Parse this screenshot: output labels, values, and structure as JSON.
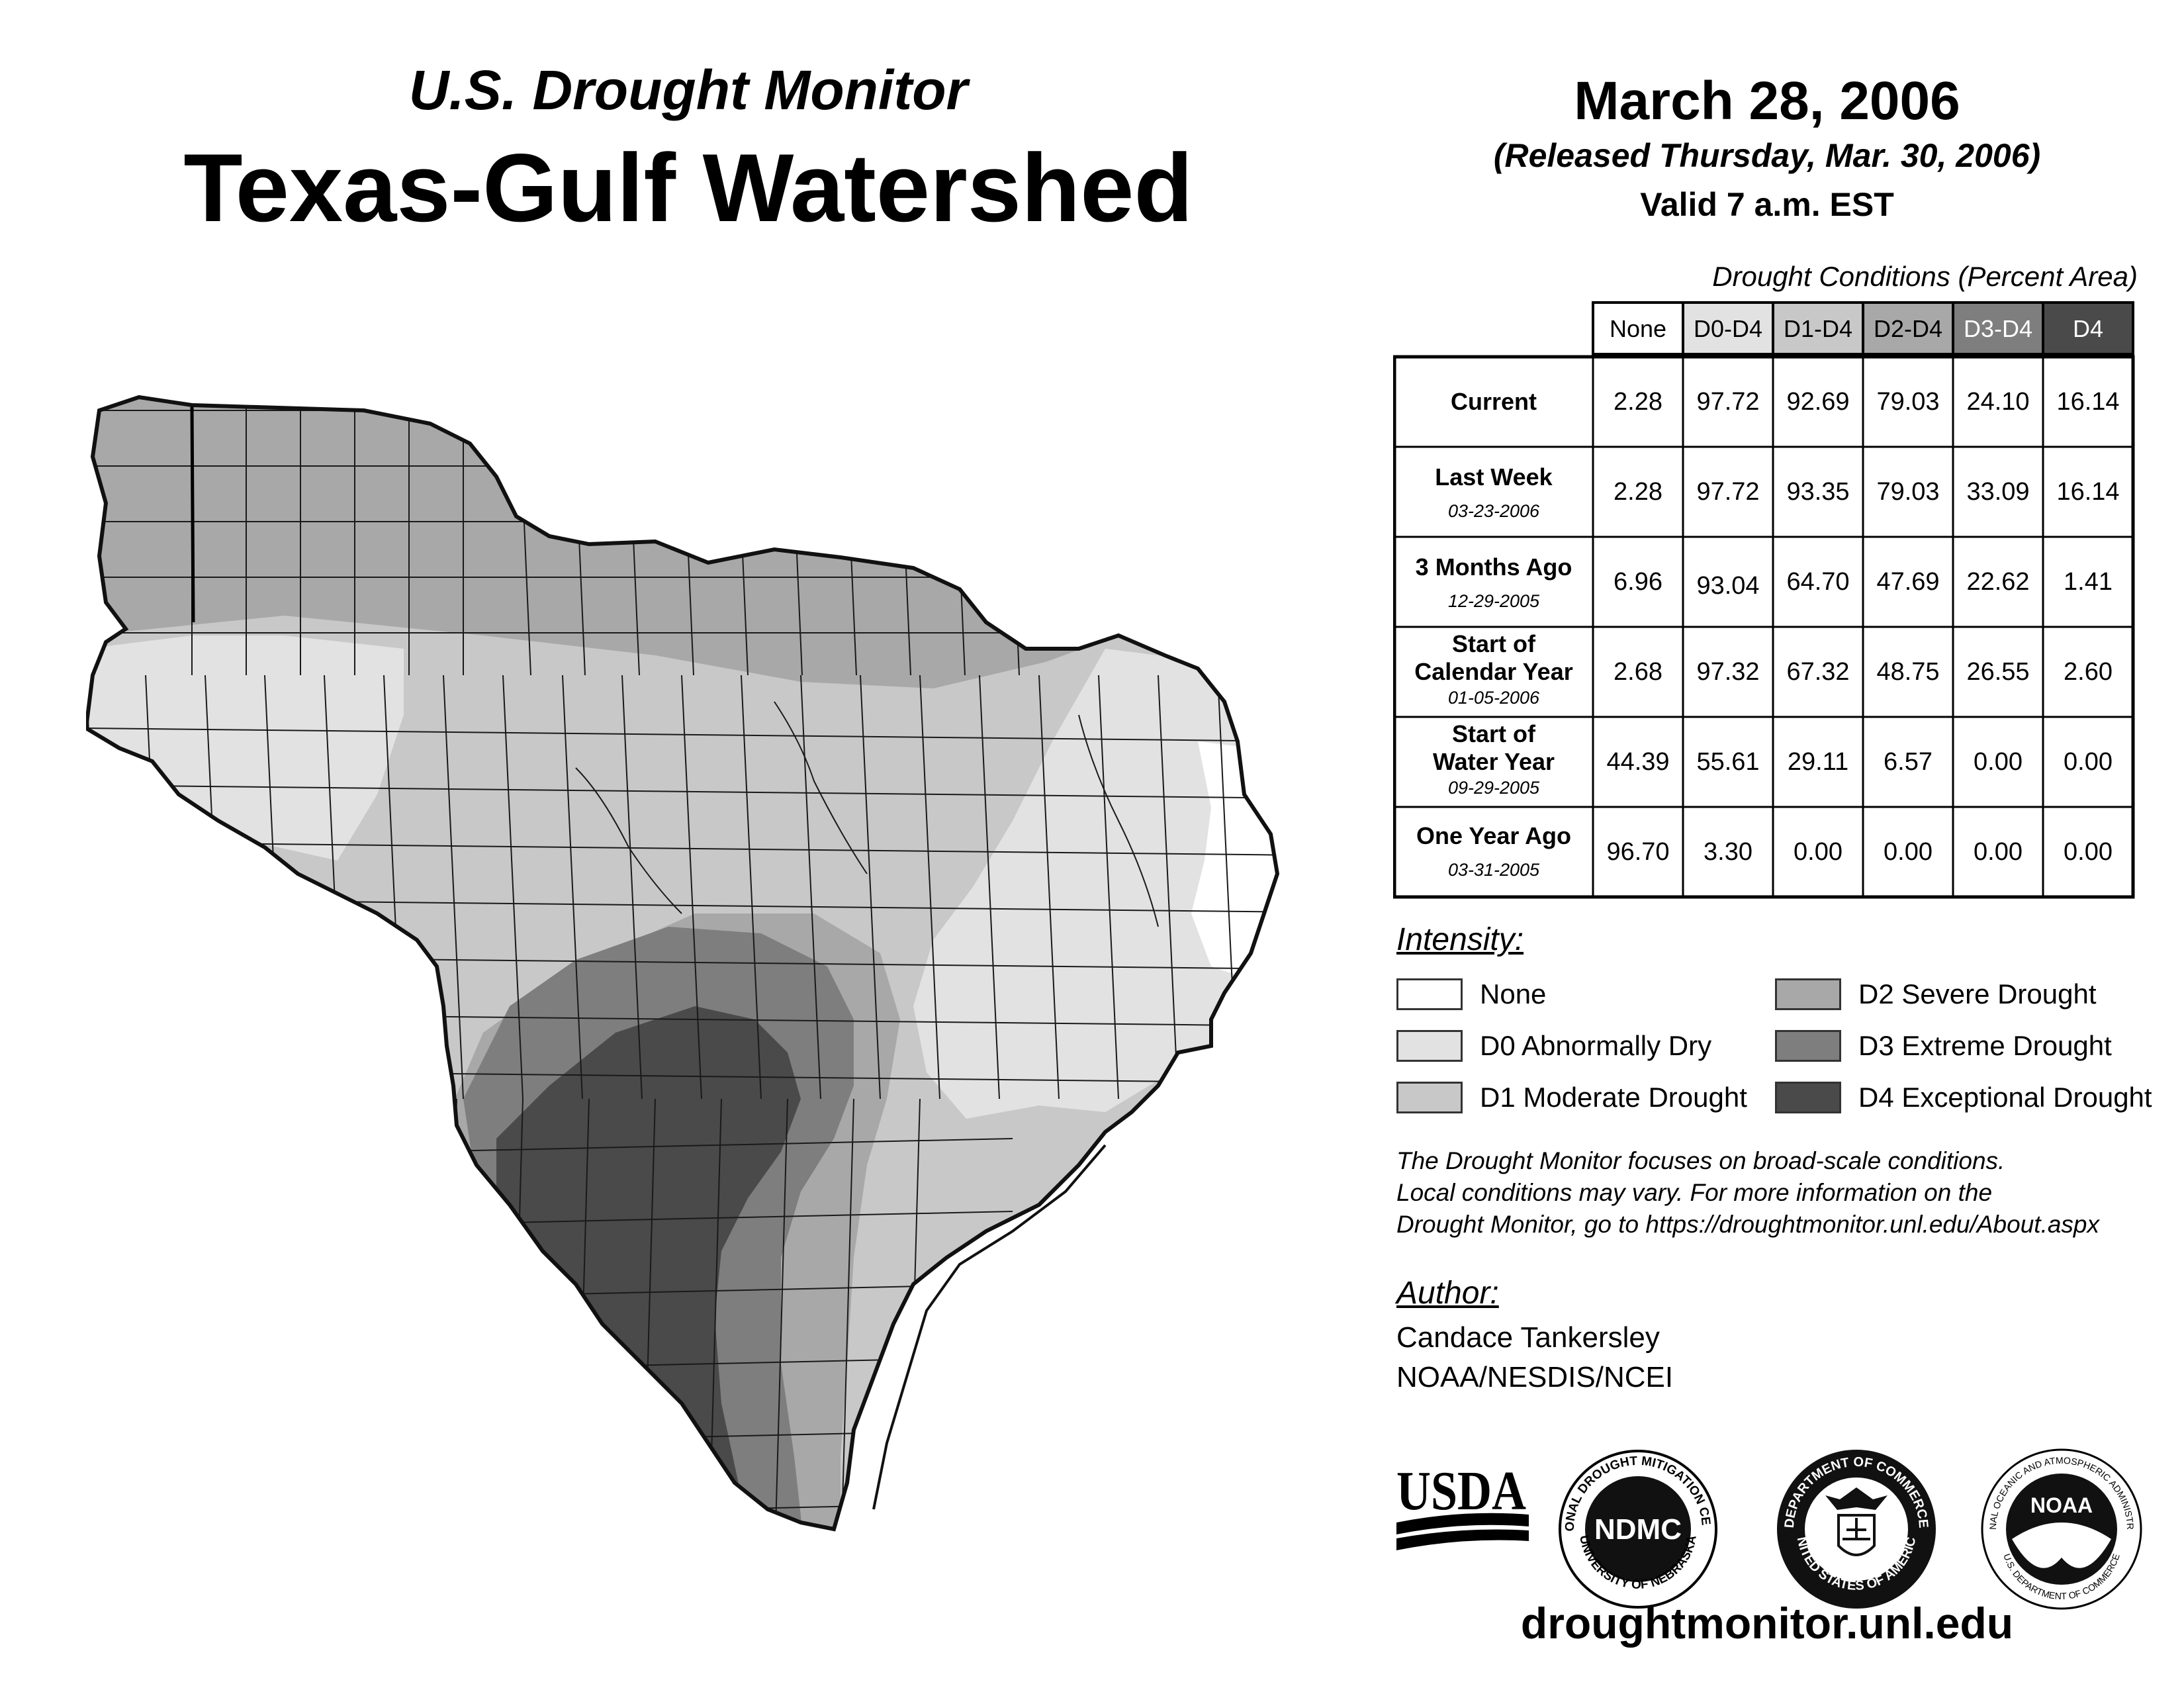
{
  "header": {
    "subtitle": "U.S. Drought Monitor",
    "title": "Texas-Gulf Watershed",
    "date": "March 28, 2006",
    "released": "(Released Thursday, Mar. 30, 2006)",
    "valid": "Valid 7 a.m. EST"
  },
  "table": {
    "caption": "Drought Conditions (Percent Area)",
    "columns": [
      "None",
      "D0-D4",
      "D1-D4",
      "D2-D4",
      "D3-D4",
      "D4"
    ],
    "rows": [
      {
        "label": "Current",
        "date": "",
        "values": [
          "2.28",
          "97.72",
          "92.69",
          "79.03",
          "24.10",
          "16.14"
        ]
      },
      {
        "label": "Last Week",
        "date": "03-23-2006",
        "values": [
          "2.28",
          "97.72",
          "93.35",
          "79.03",
          "33.09",
          "16.14"
        ]
      },
      {
        "label": "3 Months Ago",
        "date": "12-29-2005",
        "values": [
          "6.96",
          "93.04",
          "64.70",
          "47.69",
          "22.62",
          "1.41"
        ]
      },
      {
        "label": "Start of Calendar Year",
        "label_line1": "Start of",
        "label_line2": "Calendar Year",
        "date": "01-05-2006",
        "values": [
          "2.68",
          "97.32",
          "67.32",
          "48.75",
          "26.55",
          "2.60"
        ]
      },
      {
        "label": "Start of Water Year",
        "label_line1": "Start of",
        "label_line2": "Water Year",
        "date": "09-29-2005",
        "values": [
          "44.39",
          "55.61",
          "29.11",
          "6.57",
          "0.00",
          "0.00"
        ]
      },
      {
        "label": "One Year Ago",
        "date": "03-31-2005",
        "values": [
          "96.70",
          "3.30",
          "0.00",
          "0.00",
          "0.00",
          "0.00"
        ]
      }
    ]
  },
  "legend": {
    "title": "Intensity:",
    "items": [
      {
        "label": "None",
        "color": "#ffffff"
      },
      {
        "label": "D0 Abnormally Dry",
        "color": "#e2e2e2"
      },
      {
        "label": "D1 Moderate Drought",
        "color": "#c8c8c8"
      },
      {
        "label": "D2 Severe Drought",
        "color": "#a8a8a8"
      },
      {
        "label": "D3 Extreme Drought",
        "color": "#7e7e7e"
      },
      {
        "label": "D4 Exceptional Drought",
        "color": "#4a4a4a"
      }
    ]
  },
  "note": {
    "line1": "The Drought Monitor focuses on broad-scale conditions.",
    "line2": "Local conditions may vary. For more information on the",
    "line3": "Drought Monitor, go to https://droughtmonitor.unl.edu/About.aspx"
  },
  "author": {
    "label": "Author:",
    "name": "Candace Tankersley",
    "org": "NOAA/NESDIS/NCEI"
  },
  "logos": {
    "usda": "USDA",
    "ndmc": "NDMC",
    "ndmc_ring_top": "NATIONAL DROUGHT MITIGATION CENTER",
    "ndmc_ring_bottom": "UNIVERSITY OF NEBRASKA",
    "doc_ring_top": "DEPARTMENT OF COMMERCE",
    "doc_ring_bottom": "UNITED STATES OF AMERICA",
    "noaa": "NOAA",
    "noaa_ring_top": "NATIONAL OCEANIC AND ATMOSPHERIC ADMINISTRATION",
    "noaa_ring_bottom": "U.S. DEPARTMENT OF COMMERCE"
  },
  "website": "droughtmonitor.unl.edu",
  "map": {
    "region": "Texas-Gulf Watershed",
    "outline_color": "#111111",
    "county_line_color": "#1a1a1a"
  }
}
